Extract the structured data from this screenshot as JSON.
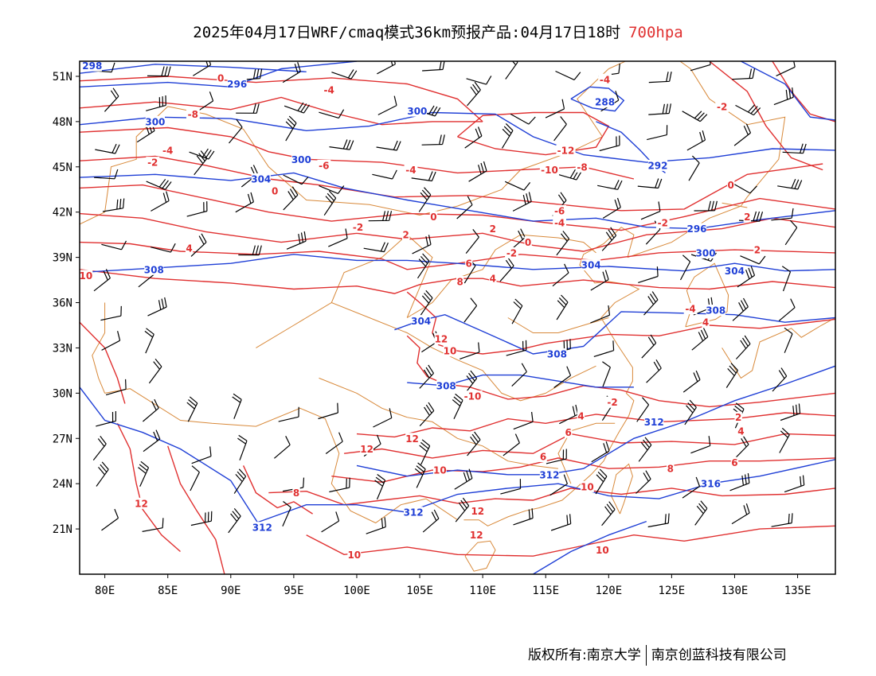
{
  "title": {
    "main": "2025年04月17日WRF/cmaq模式36km预报产品:04月17日18时",
    "level": "700hpa"
  },
  "footer": {
    "left": "版权所有:南京大学",
    "right": "南京创蓝科技有限公司"
  },
  "map": {
    "lon_range": [
      78,
      138
    ],
    "lat_range": [
      18,
      52
    ],
    "lon_ticks": [
      "80E",
      "85E",
      "90E",
      "95E",
      "100E",
      "105E",
      "110E",
      "115E",
      "120E",
      "125E",
      "130E",
      "135E"
    ],
    "lat_ticks": [
      "51N",
      "48N",
      "45N",
      "42N",
      "39N",
      "36N",
      "33N",
      "30N",
      "27N",
      "24N",
      "21N"
    ],
    "colors": {
      "temperature": "#e03030",
      "geopotential": "#1f3fd6",
      "boundary": "#d8893a",
      "wind": "#000000"
    }
  },
  "temperature_labels": [
    {
      "t": "-4",
      "lon": 97.8,
      "lat": 50.1
    },
    {
      "t": "0",
      "lon": 89.2,
      "lat": 50.9
    },
    {
      "t": "-8",
      "lon": 87.0,
      "lat": 48.5
    },
    {
      "t": "-4",
      "lon": 119.7,
      "lat": 50.8
    },
    {
      "t": "-2",
      "lon": 129.0,
      "lat": 49.0
    },
    {
      "t": "-12",
      "lon": 116.6,
      "lat": 46.1
    },
    {
      "t": "-8",
      "lon": 117.9,
      "lat": 45.0
    },
    {
      "t": "-10",
      "lon": 115.3,
      "lat": 44.8
    },
    {
      "t": "-4",
      "lon": 104.3,
      "lat": 44.8
    },
    {
      "t": "-6",
      "lon": 97.4,
      "lat": 45.1
    },
    {
      "t": "-4",
      "lon": 85.0,
      "lat": 46.1
    },
    {
      "t": "-2",
      "lon": 83.8,
      "lat": 45.3
    },
    {
      "t": "0",
      "lon": 93.5,
      "lat": 43.4
    },
    {
      "t": "0",
      "lon": 129.7,
      "lat": 43.8
    },
    {
      "t": "-6",
      "lon": 116.1,
      "lat": 42.1
    },
    {
      "t": "-4",
      "lon": 116.1,
      "lat": 41.3
    },
    {
      "t": "-2",
      "lon": 124.3,
      "lat": 41.3
    },
    {
      "t": "2",
      "lon": 131.0,
      "lat": 41.7
    },
    {
      "t": "0",
      "lon": 106.1,
      "lat": 41.7
    },
    {
      "t": "-2",
      "lon": 100.1,
      "lat": 41.0
    },
    {
      "t": "2",
      "lon": 103.9,
      "lat": 40.5
    },
    {
      "t": "2",
      "lon": 110.8,
      "lat": 40.9
    },
    {
      "t": "0",
      "lon": 113.6,
      "lat": 40.0
    },
    {
      "t": "-2",
      "lon": 112.3,
      "lat": 39.3
    },
    {
      "t": "2",
      "lon": 131.8,
      "lat": 39.5
    },
    {
      "t": "4",
      "lon": 86.7,
      "lat": 39.6
    },
    {
      "t": "6",
      "lon": 108.9,
      "lat": 38.6
    },
    {
      "t": "8",
      "lon": 108.2,
      "lat": 37.4
    },
    {
      "t": "4",
      "lon": 110.8,
      "lat": 37.6
    },
    {
      "t": "10",
      "lon": 78.5,
      "lat": 37.8
    },
    {
      "t": "12",
      "lon": 106.7,
      "lat": 33.6
    },
    {
      "t": "10",
      "lon": 107.4,
      "lat": 32.8
    },
    {
      "t": "-4",
      "lon": 126.5,
      "lat": 35.6
    },
    {
      "t": "4",
      "lon": 127.7,
      "lat": 34.7
    },
    {
      "t": "-2",
      "lon": 120.3,
      "lat": 29.4
    },
    {
      "t": "-10",
      "lon": 109.2,
      "lat": 29.8
    },
    {
      "t": "2",
      "lon": 130.3,
      "lat": 28.4
    },
    {
      "t": "4",
      "lon": 117.8,
      "lat": 28.5
    },
    {
      "t": "4",
      "lon": 130.5,
      "lat": 27.5
    },
    {
      "t": "6",
      "lon": 116.8,
      "lat": 27.4
    },
    {
      "t": "12",
      "lon": 104.4,
      "lat": 27.0
    },
    {
      "t": "12",
      "lon": 100.8,
      "lat": 26.3
    },
    {
      "t": "6",
      "lon": 114.8,
      "lat": 25.8
    },
    {
      "t": "6",
      "lon": 130.0,
      "lat": 25.4
    },
    {
      "t": "10",
      "lon": 106.6,
      "lat": 24.9
    },
    {
      "t": "8",
      "lon": 124.9,
      "lat": 25.0
    },
    {
      "t": "10",
      "lon": 118.3,
      "lat": 23.8
    },
    {
      "t": "8",
      "lon": 95.2,
      "lat": 23.4
    },
    {
      "t": "12",
      "lon": 82.9,
      "lat": 22.7
    },
    {
      "t": "12",
      "lon": 109.6,
      "lat": 22.2
    },
    {
      "t": "12",
      "lon": 109.5,
      "lat": 20.6
    },
    {
      "t": "10",
      "lon": 119.5,
      "lat": 19.6
    },
    {
      "t": "10",
      "lon": 99.8,
      "lat": 19.3
    }
  ],
  "height_labels": [
    {
      "t": "298",
      "lon": 79.0,
      "lat": 51.7
    },
    {
      "t": "296",
      "lon": 90.5,
      "lat": 50.5
    },
    {
      "t": "300",
      "lon": 84.0,
      "lat": 48.0
    },
    {
      "t": "300",
      "lon": 104.8,
      "lat": 48.7
    },
    {
      "t": "288",
      "lon": 119.7,
      "lat": 49.3
    },
    {
      "t": "300",
      "lon": 95.6,
      "lat": 45.5
    },
    {
      "t": "292",
      "lon": 123.9,
      "lat": 45.1
    },
    {
      "t": "304",
      "lon": 92.4,
      "lat": 44.2
    },
    {
      "t": "296",
      "lon": 127.0,
      "lat": 40.9
    },
    {
      "t": "300",
      "lon": 127.7,
      "lat": 39.3
    },
    {
      "t": "304",
      "lon": 118.6,
      "lat": 38.5
    },
    {
      "t": "304",
      "lon": 130.0,
      "lat": 38.1
    },
    {
      "t": "308",
      "lon": 83.9,
      "lat": 38.2
    },
    {
      "t": "308",
      "lon": 128.5,
      "lat": 35.5
    },
    {
      "t": "304",
      "lon": 105.1,
      "lat": 34.8
    },
    {
      "t": "308",
      "lon": 115.9,
      "lat": 32.6
    },
    {
      "t": "308",
      "lon": 107.1,
      "lat": 30.5
    },
    {
      "t": "312",
      "lon": 123.6,
      "lat": 28.1
    },
    {
      "t": "312",
      "lon": 115.3,
      "lat": 24.6
    },
    {
      "t": "316",
      "lon": 128.1,
      "lat": 24.0
    },
    {
      "t": "312",
      "lon": 104.5,
      "lat": 22.1
    },
    {
      "t": "312",
      "lon": 92.5,
      "lat": 21.1
    }
  ]
}
